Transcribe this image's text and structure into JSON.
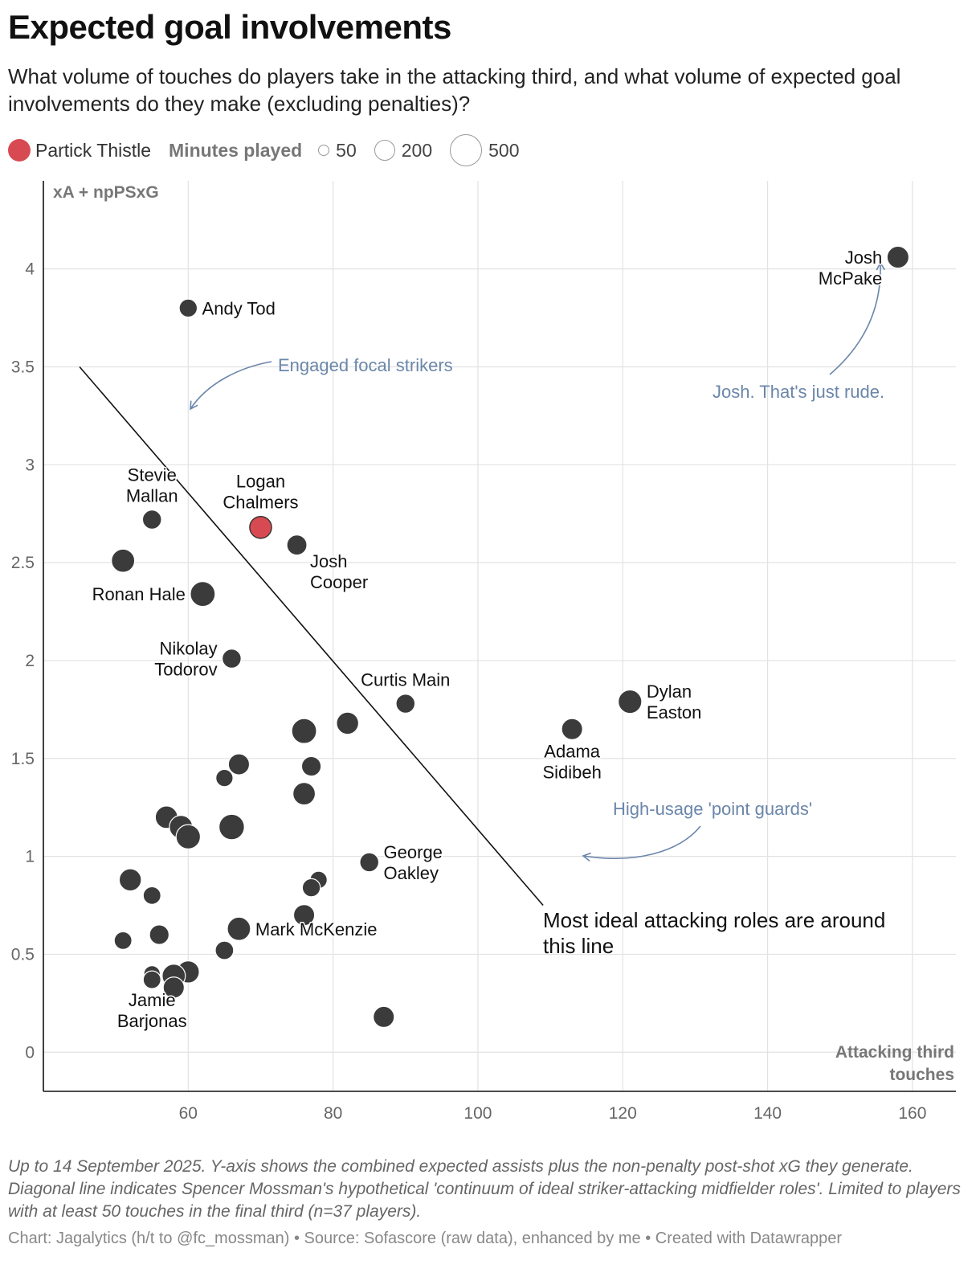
{
  "chart_data": {
    "type": "scatter",
    "title": "Expected goal involvements",
    "subtitle": "What volume of touches do players take in the attacking third, and what volume of expected goal involvements do they make (excluding penalties)?",
    "xlabel": "Attacking third touches",
    "xlabel_lines": [
      "Attacking third",
      "touches"
    ],
    "ylabel": "xA + npPSxG",
    "xlim": [
      40,
      166
    ],
    "ylim": [
      -0.2,
      4.45
    ],
    "x_ticks": [
      60,
      80,
      100,
      120,
      140,
      160
    ],
    "y_ticks": [
      0,
      0.5,
      1,
      1.5,
      2,
      2.5,
      3,
      3.5,
      4
    ],
    "y_tick_labels": [
      "0",
      "0.5",
      "1",
      "1.5",
      "2",
      "2.5",
      "3",
      "3.5",
      "4"
    ],
    "grid": true,
    "legend": {
      "position": "top",
      "highlight_label": "Partick Thistle",
      "size_title": "Minutes played",
      "sizes": [
        {
          "label": "50",
          "minutes": 50
        },
        {
          "label": "200",
          "minutes": 200
        },
        {
          "label": "500",
          "minutes": 500
        }
      ]
    },
    "colors": {
      "default": "#3b3b3b",
      "highlight": "#d84a52",
      "annotation": "#6b86aa",
      "grid": "#e2e2e2",
      "line": "#111111"
    },
    "points": [
      {
        "name": "Josh McPake",
        "label_lines": [
          "Josh",
          "McPake"
        ],
        "label_side": "below-left",
        "x": 158,
        "y": 4.06,
        "minutes": 330,
        "highlight": false
      },
      {
        "name": "Andy Tod",
        "label_lines": [
          "Andy Tod"
        ],
        "label_side": "right",
        "x": 60,
        "y": 3.8,
        "minutes": 190,
        "highlight": false
      },
      {
        "name": "Stevie Mallan",
        "label_lines": [
          "Stevie",
          "Mallan"
        ],
        "label_side": "above",
        "x": 55,
        "y": 2.72,
        "minutes": 225,
        "highlight": false
      },
      {
        "name": "Logan Chalmers",
        "label_lines": [
          "Logan",
          "Chalmers"
        ],
        "label_side": "above",
        "x": 70,
        "y": 2.68,
        "minutes": 330,
        "highlight": true
      },
      {
        "name": "Josh Cooper",
        "label_lines": [
          "Josh",
          "Cooper"
        ],
        "label_side": "right-below",
        "x": 75,
        "y": 2.59,
        "minutes": 265,
        "highlight": false
      },
      {
        "name": "",
        "label_lines": [],
        "label_side": "none",
        "x": 51,
        "y": 2.51,
        "minutes": 380,
        "highlight": false
      },
      {
        "name": "Ronan Hale",
        "label_lines": [
          "Ronan Hale"
        ],
        "label_side": "left",
        "x": 62,
        "y": 2.34,
        "minutes": 440,
        "highlight": false
      },
      {
        "name": "Nikolay Todorov",
        "label_lines": [
          "Nikolay",
          "Todorov"
        ],
        "label_side": "left",
        "x": 66,
        "y": 2.01,
        "minutes": 225,
        "highlight": false
      },
      {
        "name": "Curtis Main",
        "label_lines": [
          "Curtis Main"
        ],
        "label_side": "above",
        "x": 90,
        "y": 1.78,
        "minutes": 225,
        "highlight": false
      },
      {
        "name": "Dylan Easton",
        "label_lines": [
          "Dylan",
          "Easton"
        ],
        "label_side": "right",
        "x": 121,
        "y": 1.79,
        "minutes": 390,
        "highlight": false
      },
      {
        "name": "Adama Sidibeh",
        "label_lines": [
          "Adama",
          "Sidibeh"
        ],
        "label_side": "below",
        "x": 113,
        "y": 1.65,
        "minutes": 300,
        "highlight": false
      },
      {
        "name": "",
        "label_lines": [],
        "label_side": "none",
        "x": 82,
        "y": 1.68,
        "minutes": 340,
        "highlight": false
      },
      {
        "name": "",
        "label_lines": [],
        "label_side": "none",
        "x": 76,
        "y": 1.64,
        "minutes": 440,
        "highlight": false
      },
      {
        "name": "",
        "label_lines": [],
        "label_side": "none",
        "x": 67,
        "y": 1.47,
        "minutes": 300,
        "highlight": false
      },
      {
        "name": "",
        "label_lines": [],
        "label_side": "none",
        "x": 77,
        "y": 1.46,
        "minutes": 245,
        "highlight": false
      },
      {
        "name": "",
        "label_lines": [],
        "label_side": "none",
        "x": 65,
        "y": 1.4,
        "minutes": 160,
        "highlight": false
      },
      {
        "name": "",
        "label_lines": [],
        "label_side": "none",
        "x": 76,
        "y": 1.32,
        "minutes": 350,
        "highlight": false
      },
      {
        "name": "",
        "label_lines": [],
        "label_side": "none",
        "x": 57,
        "y": 1.2,
        "minutes": 350,
        "highlight": false
      },
      {
        "name": "",
        "label_lines": [],
        "label_side": "none",
        "x": 66,
        "y": 1.15,
        "minutes": 460,
        "highlight": false
      },
      {
        "name": "",
        "label_lines": [],
        "label_side": "none",
        "x": 59,
        "y": 1.15,
        "minutes": 380,
        "highlight": false
      },
      {
        "name": "",
        "label_lines": [],
        "label_side": "none",
        "x": 60,
        "y": 1.1,
        "minutes": 420,
        "highlight": false
      },
      {
        "name": "George Oakley",
        "label_lines": [
          "George",
          "Oakley"
        ],
        "label_side": "right",
        "x": 85,
        "y": 0.97,
        "minutes": 225,
        "highlight": false
      },
      {
        "name": "",
        "label_lines": [],
        "label_side": "none",
        "x": 52,
        "y": 0.88,
        "minutes": 340,
        "highlight": false
      },
      {
        "name": "",
        "label_lines": [],
        "label_side": "none",
        "x": 78,
        "y": 0.88,
        "minutes": 160,
        "highlight": false
      },
      {
        "name": "",
        "label_lines": [],
        "label_side": "none",
        "x": 77,
        "y": 0.84,
        "minutes": 190,
        "highlight": false
      },
      {
        "name": "",
        "label_lines": [],
        "label_side": "none",
        "x": 55,
        "y": 0.8,
        "minutes": 175,
        "highlight": false
      },
      {
        "name": "",
        "label_lines": [],
        "label_side": "none",
        "x": 76,
        "y": 0.7,
        "minutes": 300,
        "highlight": false
      },
      {
        "name": "Mark McKenzie",
        "label_lines": [
          "Mark McKenzie"
        ],
        "label_side": "right",
        "x": 67,
        "y": 0.63,
        "minutes": 380,
        "highlight": false
      },
      {
        "name": "",
        "label_lines": [],
        "label_side": "none",
        "x": 56,
        "y": 0.6,
        "minutes": 245,
        "highlight": false
      },
      {
        "name": "",
        "label_lines": [],
        "label_side": "none",
        "x": 51,
        "y": 0.57,
        "minutes": 175,
        "highlight": false
      },
      {
        "name": "",
        "label_lines": [],
        "label_side": "none",
        "x": 65,
        "y": 0.52,
        "minutes": 200,
        "highlight": false
      },
      {
        "name": "",
        "label_lines": [],
        "label_side": "none",
        "x": 60,
        "y": 0.41,
        "minutes": 340,
        "highlight": false
      },
      {
        "name": "",
        "label_lines": [],
        "label_side": "none",
        "x": 58,
        "y": 0.39,
        "minutes": 380,
        "highlight": false
      },
      {
        "name": "",
        "label_lines": [],
        "label_side": "none",
        "x": 55,
        "y": 0.4,
        "minutes": 130,
        "highlight": false
      },
      {
        "name": "",
        "label_lines": [],
        "label_side": "none",
        "x": 58,
        "y": 0.33,
        "minutes": 300,
        "highlight": false
      },
      {
        "name": "Jamie Barjonas",
        "label_lines": [
          "Jamie",
          "Barjonas"
        ],
        "label_side": "below",
        "x": 55,
        "y": 0.37,
        "minutes": 175,
        "highlight": false
      },
      {
        "name": "",
        "label_lines": [],
        "label_side": "none",
        "x": 87,
        "y": 0.18,
        "minutes": 300,
        "highlight": false
      }
    ],
    "reference_line": {
      "from": [
        45,
        3.5
      ],
      "to": [
        109,
        0.75
      ],
      "label_lines": [
        "Most ideal attacking roles are around",
        "this line"
      ]
    },
    "annotations": [
      {
        "text": "Engaged focal strikers"
      },
      {
        "text": "Josh. That's just rude."
      },
      {
        "text": "High-usage 'point guards'"
      }
    ]
  },
  "notes": "Up to 14 September 2025. Y-axis shows the combined expected assists plus the non-penalty post-shot xG they generate. Diagonal line indicates Spencer Mossman's hypothetical 'continuum of ideal striker-attacking midfielder roles'. Limited to players with at least 50 touches in the final third (n=37 players).",
  "credit": "Chart: Jagalytics (h/t to @fc_mossman) • Source: Sofascore (raw data), enhanced by me • Created with Datawrapper"
}
